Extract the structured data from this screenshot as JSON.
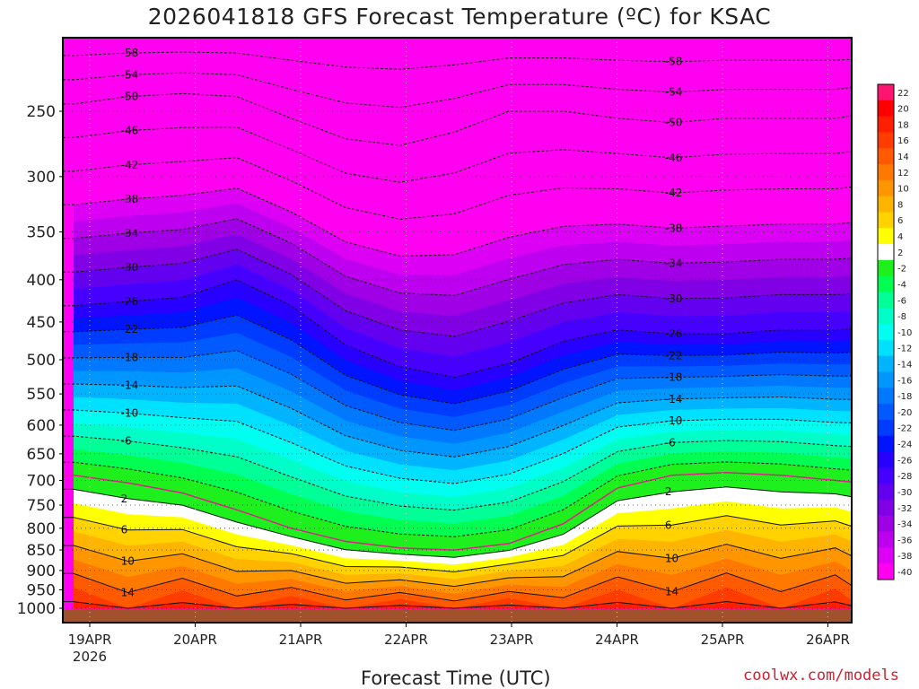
{
  "title": "2026041818 GFS Forecast Temperature (ºC) for KSAC",
  "xlabel": "Forecast Time (UTC)",
  "credit": "coolwx.com/models",
  "chart_data": {
    "type": "heatmap",
    "title": "2026041818 GFS Forecast Temperature (ºC) for KSAC",
    "xlabel": "Forecast Time (UTC)",
    "ylabel": "",
    "x_ticks": [
      "19APR",
      "20APR",
      "21APR",
      "22APR",
      "23APR",
      "24APR",
      "25APR",
      "26APR"
    ],
    "x_year": "2026",
    "y_ticks": [
      250,
      300,
      350,
      400,
      450,
      500,
      550,
      600,
      650,
      700,
      750,
      800,
      850,
      900,
      950,
      1000
    ],
    "y_scale": "log-pressure (inverted)",
    "ylim": [
      1000,
      200
    ],
    "colorbar_ticks": [
      22,
      20,
      18,
      16,
      14,
      12,
      10,
      8,
      6,
      4,
      2,
      -2,
      -4,
      -6,
      -8,
      -10,
      -12,
      -14,
      -16,
      -18,
      -20,
      -22,
      -24,
      -26,
      -28,
      -30,
      -32,
      -34,
      -36,
      -38,
      -40
    ],
    "colorbar_colors": [
      "#ff1470",
      "#ff0000",
      "#ff1e00",
      "#ff3c00",
      "#ff5a00",
      "#ff7800",
      "#ff9600",
      "#ffb400",
      "#ffd200",
      "#ffff00",
      "#ffffff",
      "#1ef01e",
      "#00ff50",
      "#00ff96",
      "#00ffc8",
      "#00fff0",
      "#00e1ff",
      "#00b4ff",
      "#0096ff",
      "#0078ff",
      "#005aff",
      "#003cff",
      "#0014ff",
      "#2800ff",
      "#4600ff",
      "#6400f0",
      "#8200e6",
      "#a000e6",
      "#be00f0",
      "#dc00f5",
      "#ff00f0"
    ],
    "grid": true,
    "times": [
      0,
      0.5,
      1,
      1.5,
      2,
      2.5,
      3,
      3.5,
      4,
      4.5,
      5,
      5.5,
      6,
      6.5,
      7,
      7.25
    ],
    "isotherm_pressures": {
      "freezing_level": [
        690,
        705,
        725,
        760,
        800,
        830,
        845,
        850,
        835,
        790,
        715,
        690,
        685,
        690,
        700,
        705
      ],
      "minus_26": [
        430,
        425,
        420,
        400,
        430,
        480,
        510,
        525,
        505,
        475,
        460,
        465,
        465,
        460,
        460,
        458
      ],
      "minus_50": [
        245,
        240,
        238,
        240,
        255,
        270,
        275,
        265,
        250,
        250,
        255,
        258,
        255,
        255,
        255,
        252
      ]
    },
    "contour_labels": [
      "-58",
      "-54",
      "-50",
      "-46",
      "-42",
      "-38",
      "-34",
      "-30",
      "-26",
      "-22",
      "-18",
      "-14",
      "-10",
      "-6",
      "2",
      "6",
      "10",
      "14"
    ]
  }
}
